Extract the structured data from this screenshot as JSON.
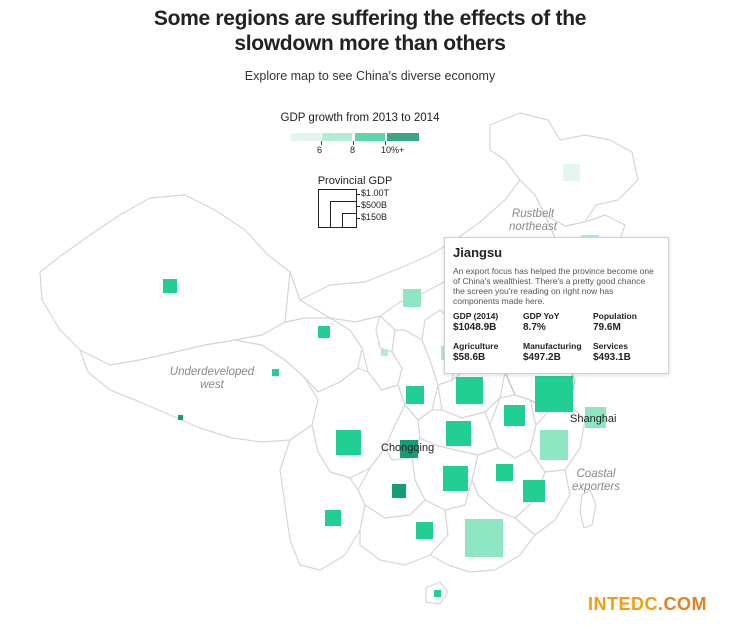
{
  "header": {
    "title_line1": "Some regions are suffering the effects of the",
    "title_line2": "slowdown more than others",
    "subtitle": "Explore map to see China's diverse economy"
  },
  "color_legend": {
    "title": "GDP growth from 2013 to 2014",
    "ticks": [
      "6",
      "8",
      "10%+"
    ],
    "colors": [
      "#e3f7ee",
      "#b3ecd4",
      "#5dd6a6",
      "#3aa886"
    ]
  },
  "size_legend": {
    "title": "Provincial GDP",
    "labels": [
      "$1.00T",
      "$500B",
      "$150B"
    ]
  },
  "map_labels": {
    "rustbelt": "Rustbelt northeast",
    "underdeveloped": "Underdeveloped west",
    "coastal": "Coastal exporters",
    "shanghai": "Shanghai",
    "chongqing": "Chongqing"
  },
  "tooltip": {
    "province": "Jiangsu",
    "description": "An export focus has helped the province become one of China's wealthiest. There's a pretty good chance the screen you're reading on right now has components made here.",
    "stats": [
      {
        "label": "GDP (2014)",
        "value": "$1048.9B"
      },
      {
        "label": "GDP YoY",
        "value": "8.7%"
      },
      {
        "label": "Population",
        "value": "79.6M"
      },
      {
        "label": "Agriculture",
        "value": "$58.6B"
      },
      {
        "label": "Manufacturing",
        "value": "$497.2B"
      },
      {
        "label": "Services",
        "value": "$493.1B"
      }
    ]
  },
  "colors": {
    "very_light": "#e3f7ee",
    "light": "#8ee7c2",
    "medium": "#22cf93",
    "dark": "#139e77"
  },
  "watermark": {
    "part1": "INTEDC",
    "part2": ".COM",
    "color1": "#f39c12",
    "color2": "#e67e22"
  }
}
